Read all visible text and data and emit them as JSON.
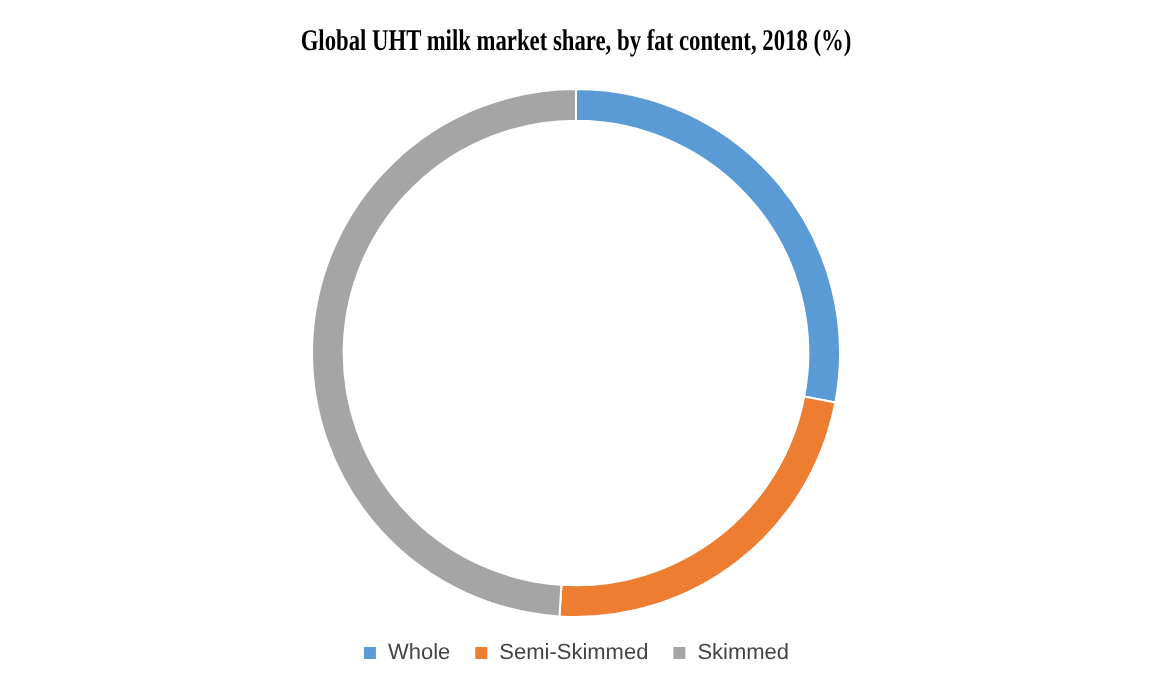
{
  "chart_data": {
    "type": "donut",
    "title": "Global UHT milk market share, by fat content, 2018 (%)",
    "categories": [
      "Whole",
      "Semi-Skimmed",
      "Skimmed"
    ],
    "values": [
      28,
      23,
      49
    ],
    "colors": [
      "#5b9bd5",
      "#ed7d31",
      "#a5a5a5"
    ],
    "legend": "bottom"
  }
}
